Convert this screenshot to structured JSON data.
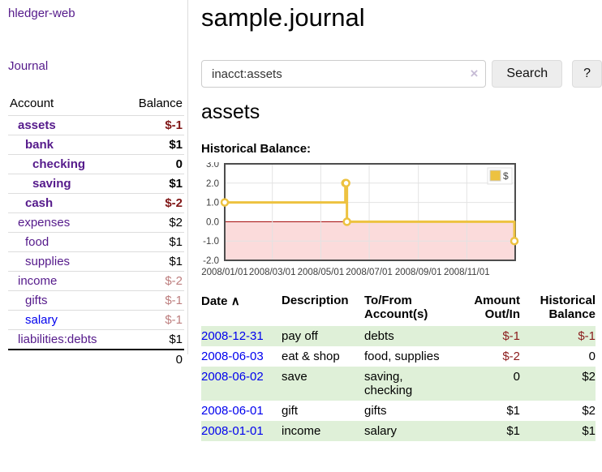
{
  "app": {
    "title": "hledger-web",
    "nav_journal": "Journal"
  },
  "sidebar": {
    "columns": {
      "account": "Account",
      "balance": "Balance"
    },
    "accounts": [
      {
        "name": "assets",
        "balance": "$-1"
      },
      {
        "name": "bank",
        "balance": "$1"
      },
      {
        "name": "checking",
        "balance": "0"
      },
      {
        "name": "saving",
        "balance": "$1"
      },
      {
        "name": "cash",
        "balance": "$-2"
      },
      {
        "name": "expenses",
        "balance": "$2"
      },
      {
        "name": "food",
        "balance": "$1"
      },
      {
        "name": "supplies",
        "balance": "$1"
      },
      {
        "name": "income",
        "balance": "$-2"
      },
      {
        "name": "gifts",
        "balance": "$-1"
      },
      {
        "name": "salary",
        "balance": "$-1"
      },
      {
        "name": "liabilities:debts",
        "balance": "$1"
      }
    ],
    "total": "0"
  },
  "main": {
    "title": "sample.journal",
    "search": {
      "value": "inacct:assets",
      "clear_icon": "×",
      "button": "Search",
      "help": "?"
    },
    "account_heading": "assets",
    "chart_label": "Historical Balance:"
  },
  "chart_data": {
    "type": "line",
    "title": "Historical Balance:",
    "step": true,
    "series": [
      {
        "name": "$",
        "color": "#edc240",
        "points": [
          [
            "2008-01-01",
            1
          ],
          [
            "2008-06-01",
            2
          ],
          [
            "2008-06-02",
            2
          ],
          [
            "2008-06-03",
            0
          ],
          [
            "2008-12-31",
            -1
          ]
        ]
      }
    ],
    "x_domain": [
      "2008-01-01",
      "2009-01-01"
    ],
    "x_ticks": [
      "2008/01/01",
      "2008/03/01",
      "2008/05/01",
      "2008/07/01",
      "2008/09/01",
      "2008/11/01"
    ],
    "y_ticks": [
      3.0,
      2.0,
      1.0,
      0.0,
      -1.0,
      -2.0
    ],
    "ylim": [
      -2,
      3
    ],
    "grid": true,
    "legend_position": "top-right",
    "legend_label": "$",
    "negative_region_color": "#fbdbdb",
    "zero_line_color": "#a00000",
    "line_color": "#edc240",
    "border_color": "#4d4d4d"
  },
  "register": {
    "columns": {
      "date": "Date",
      "description": "Description",
      "accounts": "To/From Account(s)",
      "amount": "Amount Out/In",
      "balance": "Historical Balance"
    },
    "sort_icon": "∧",
    "rows": [
      {
        "date": "2008-12-31",
        "description": "pay off",
        "accounts": "debts",
        "amount": "$-1",
        "balance": "$-1"
      },
      {
        "date": "2008-06-03",
        "description": "eat & shop",
        "accounts": "food, supplies",
        "amount": "$-2",
        "balance": "0"
      },
      {
        "date": "2008-06-02",
        "description": "save",
        "accounts": "saving, checking",
        "amount": "0",
        "balance": "$2"
      },
      {
        "date": "2008-06-01",
        "description": "gift",
        "accounts": "gifts",
        "amount": "$1",
        "balance": "$2"
      },
      {
        "date": "2008-01-01",
        "description": "income",
        "accounts": "salary",
        "amount": "$1",
        "balance": "$1"
      }
    ]
  }
}
